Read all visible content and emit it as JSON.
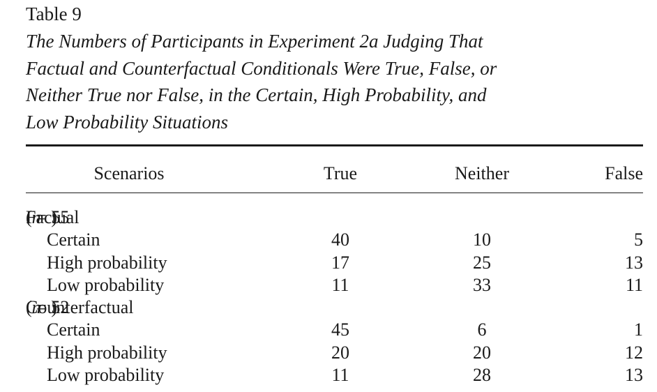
{
  "table": {
    "label": "Table 9",
    "caption_lines": [
      "The Numbers of Participants in Experiment 2a Judging That",
      "Factual and Counterfactual Conditionals Were True, False, or",
      "Neither True nor False, in the Certain, High Probability, and",
      "Low Probability Situations"
    ],
    "columns": [
      "Scenarios",
      "True",
      "Neither",
      "False"
    ],
    "groups": [
      {
        "name": "Factual",
        "n_symbol": "n",
        "n_value": "55",
        "rows": [
          {
            "label": "Certain",
            "true": "40",
            "neither": "10",
            "false": "5"
          },
          {
            "label": "High probability",
            "true": "17",
            "neither": "25",
            "false": "13"
          },
          {
            "label": "Low probability",
            "true": "11",
            "neither": "33",
            "false": "11"
          }
        ]
      },
      {
        "name": "Counterfactual",
        "n_symbol": "n",
        "n_value": "52",
        "rows": [
          {
            "label": "Certain",
            "true": "45",
            "neither": "6",
            "false": "1"
          },
          {
            "label": "High probability",
            "true": "20",
            "neither": "20",
            "false": "12"
          },
          {
            "label": "Low probability",
            "true": "11",
            "neither": "28",
            "false": "13"
          }
        ]
      }
    ]
  }
}
